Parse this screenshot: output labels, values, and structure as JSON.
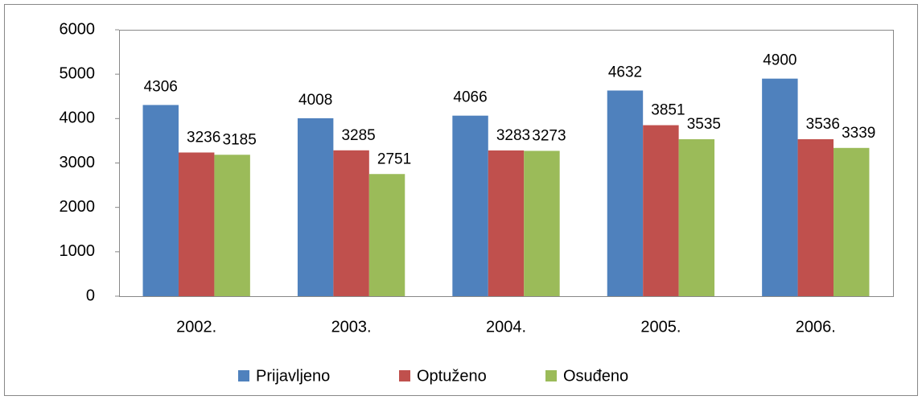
{
  "chart_data": {
    "type": "bar",
    "categories": [
      "2002.",
      "2003.",
      "2004.",
      "2005.",
      "2006."
    ],
    "series": [
      {
        "name": "Prijavljeno",
        "color": "#4f81bd",
        "values": [
          4306,
          4008,
          4066,
          4632,
          4900
        ]
      },
      {
        "name": "Optuženo",
        "color": "#c0504d",
        "values": [
          3236,
          3285,
          3283,
          3851,
          3536
        ]
      },
      {
        "name": "Osuđeno",
        "color": "#9bbb59",
        "values": [
          3185,
          2751,
          3273,
          3535,
          3339
        ]
      }
    ],
    "ylim": [
      0,
      6000
    ],
    "yticks": [
      0,
      1000,
      2000,
      3000,
      4000,
      5000,
      6000
    ],
    "grid": false,
    "legend": "bottom"
  }
}
